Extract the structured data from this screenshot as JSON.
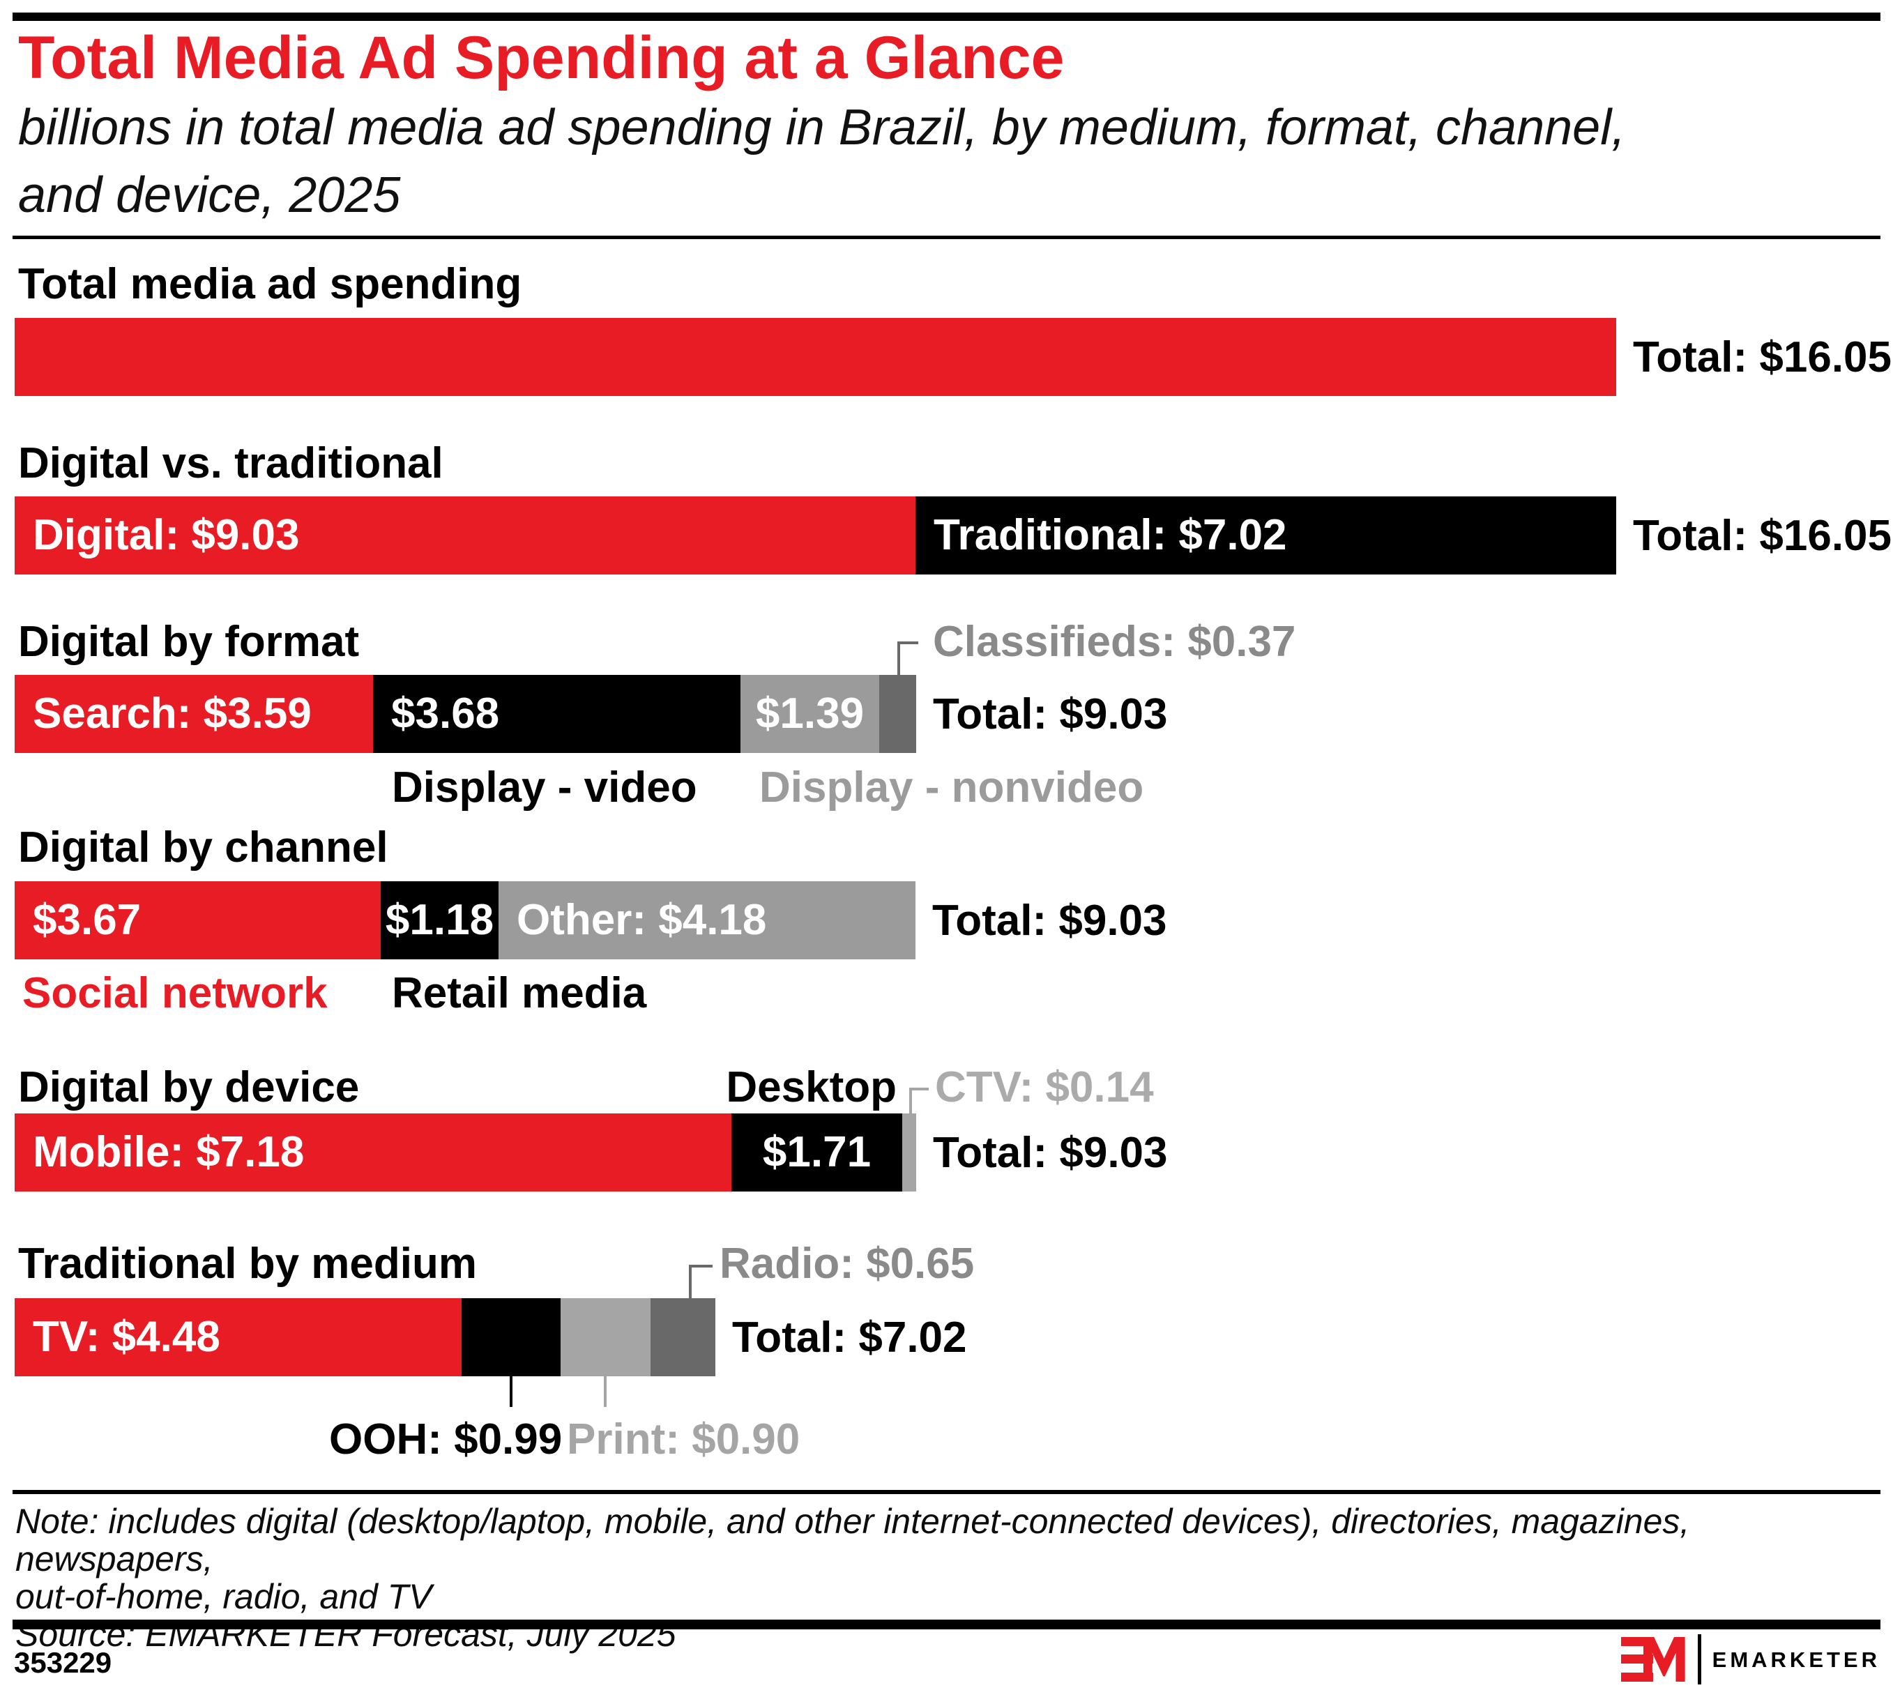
{
  "page": {
    "title": "Total Media Ad Spending at a Glance",
    "subtitle_line1": "billions in total media ad spending in Brazil, by medium, format, channel,",
    "subtitle_line2": "and device, 2025",
    "note_line1": "Note: includes digital (desktop/laptop, mobile, and other internet-connected devices), directories, magazines, newspapers,",
    "note_line2": "out-of-home, radio, and TV",
    "source": "Source: EMARKETER Forecast, July 2025",
    "chart_id": "353229",
    "brand": "EMARKETER"
  },
  "colors": {
    "red": "#E81C24",
    "black": "#000000",
    "gray": "#9B9B9B",
    "dark_gray": "#696969",
    "light_gray": "#A5A5A5",
    "gray_label": "#8A8A8A",
    "light_gray_label": "#ABABAB"
  },
  "chart_data": {
    "type": "bar",
    "unit": "billions of USD",
    "title": "Total Media Ad Spending at a Glance",
    "subtitle": "billions in total media ad spending in Brazil, by medium, format, channel, and device, 2025",
    "axis": "horizontal stacked bars, shared scale, range 0 to 16.05",
    "sections": [
      {
        "id": "total-media-ad-spending",
        "heading": "Total media ad spending",
        "total_label": "Total: $16.05",
        "total_value": 16.05,
        "segments": [
          {
            "name": "total",
            "value": 16.05,
            "color": "#E81C24",
            "inline_label": ""
          }
        ]
      },
      {
        "id": "digital-vs-traditional",
        "heading": "Digital vs. traditional",
        "total_label": "Total: $16.05",
        "total_value": 16.05,
        "segments": [
          {
            "name": "digital",
            "value": 9.03,
            "color": "#E81C24",
            "inline_label": "Digital: $9.03"
          },
          {
            "name": "traditional",
            "value": 7.02,
            "color": "#000000",
            "inline_label": "Traditional: $7.02"
          }
        ]
      },
      {
        "id": "digital-by-format",
        "heading": "Digital by format",
        "total_label": "Total: $9.03",
        "total_value": 9.03,
        "segments": [
          {
            "name": "search",
            "value": 3.59,
            "color": "#E81C24",
            "inline_label": "Search: $3.59"
          },
          {
            "name": "display-video",
            "value": 3.68,
            "color": "#000000",
            "inline_label": "$3.68",
            "below_label": "Display - video"
          },
          {
            "name": "display-nonvideo",
            "value": 1.39,
            "color": "#9B9B9B",
            "inline_label": "$1.39",
            "below_label": "Display - nonvideo"
          },
          {
            "name": "classifieds",
            "value": 0.37,
            "color": "#696969",
            "callout_label": "Classifieds: $0.37"
          }
        ]
      },
      {
        "id": "digital-by-channel",
        "heading": "Digital by channel",
        "total_label": "Total: $9.03",
        "total_value": 9.03,
        "segments": [
          {
            "name": "social-network",
            "value": 3.67,
            "color": "#E81C24",
            "inline_label": "$3.67",
            "below_label": "Social network"
          },
          {
            "name": "retail-media",
            "value": 1.18,
            "color": "#000000",
            "inline_label": "$1.18",
            "below_label": "Retail media"
          },
          {
            "name": "other",
            "value": 4.18,
            "color": "#9B9B9B",
            "inline_label": "Other: $4.18"
          }
        ]
      },
      {
        "id": "digital-by-device",
        "heading": "Digital by device",
        "total_label": "Total: $9.03",
        "total_value": 9.03,
        "segments": [
          {
            "name": "mobile",
            "value": 7.18,
            "color": "#E81C24",
            "inline_label": "Mobile: $7.18"
          },
          {
            "name": "desktop",
            "value": 1.71,
            "color": "#000000",
            "inline_label": "$1.71",
            "above_label": "Desktop"
          },
          {
            "name": "ctv",
            "value": 0.14,
            "color": "#A5A5A5",
            "callout_label": "CTV: $0.14"
          }
        ]
      },
      {
        "id": "traditional-by-medium",
        "heading": "Traditional by medium",
        "total_label": "Total: $7.02",
        "total_value": 7.02,
        "segments": [
          {
            "name": "tv",
            "value": 4.48,
            "color": "#E81C24",
            "inline_label": "TV: $4.48"
          },
          {
            "name": "ooh",
            "value": 0.99,
            "color": "#000000",
            "drop_label": "OOH: $0.99"
          },
          {
            "name": "print",
            "value": 0.9,
            "color": "#A5A5A5",
            "drop_label": "Print: $0.90"
          },
          {
            "name": "radio",
            "value": 0.65,
            "color": "#696969",
            "callout_label": "Radio: $0.65"
          }
        ]
      }
    ]
  }
}
